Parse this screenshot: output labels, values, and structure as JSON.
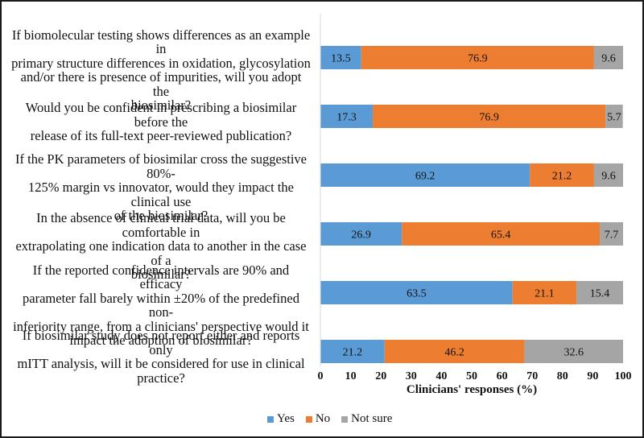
{
  "chart_data": {
    "type": "bar",
    "orientation": "horizontal",
    "stacked": true,
    "title": "",
    "xlabel": "Clinicians' responses (%)",
    "ylabel": "",
    "xlim": [
      0,
      100
    ],
    "xticks": [
      0,
      10,
      20,
      30,
      40,
      50,
      60,
      70,
      80,
      90,
      100
    ],
    "grid": false,
    "legend_position": "bottom",
    "categories": [
      "If biomolecular testing shows differences as an example in primary structure differences in oxidation, glycosylation and/or there is presence of impurities, will you adopt the biosimilar?",
      "Would you be confident in prescribing a biosimilar before the release of its full-text peer-reviewed publication?",
      "If the PK parameters of biosimilar cross the suggestive 80%-125% margin vs innovator, would they impact the clinical use of the biosimilar?",
      "In the absence of clinical trial data, will you be comfortable in extrapolating one indication data to another in the case of a biosimilar?",
      "If the reported confidence intervals are 90% and efficacy parameter fall barely within ±20% of the predefined non-inferiority range, from a clinicians' perspective would it impact the adoption of biosimilar?",
      "If biosimilar study does not report either and reports only mITT analysis, will it be considered for use in clinical practice?"
    ],
    "category_lines": [
      [
        "If biomolecular testing shows differences as an example in",
        "primary structure differences in oxidation, glycosylation",
        "and/or there is presence of impurities, will you adopt the",
        "biosimilar?"
      ],
      [
        "Would you be confident in prescribing a biosimilar before the",
        "release of its full-text peer-reviewed publication?"
      ],
      [
        "If the PK parameters of biosimilar cross the suggestive 80%-",
        "125% margin vs innovator, would they impact the clinical use",
        "of the biosimilar?"
      ],
      [
        "In the absence of clinical trial data, will you be comfortable in",
        "extrapolating one indication data to another in the case of a",
        "biosimilar?"
      ],
      [
        "If the reported confidence intervals are 90% and efficacy",
        "parameter fall barely within ±20% of the predefined non-",
        "inferiority range, from a clinicians' perspective would it",
        "impact the adoption of biosimilar?"
      ],
      [
        "If biosimilar study does not report either and reports only",
        "mITT analysis, will it be considered for use in clinical",
        "practice?"
      ]
    ],
    "series": [
      {
        "name": "Yes",
        "color": "#5b9bd5",
        "values": [
          13.5,
          17.3,
          69.2,
          26.9,
          63.5,
          21.2
        ]
      },
      {
        "name": "No",
        "color": "#ed7d31",
        "values": [
          76.9,
          76.9,
          21.2,
          65.4,
          21.1,
          46.2
        ]
      },
      {
        "name": "Not sure",
        "color": "#a5a5a5",
        "values": [
          9.6,
          5.7,
          9.6,
          7.7,
          15.4,
          32.6
        ]
      }
    ]
  }
}
